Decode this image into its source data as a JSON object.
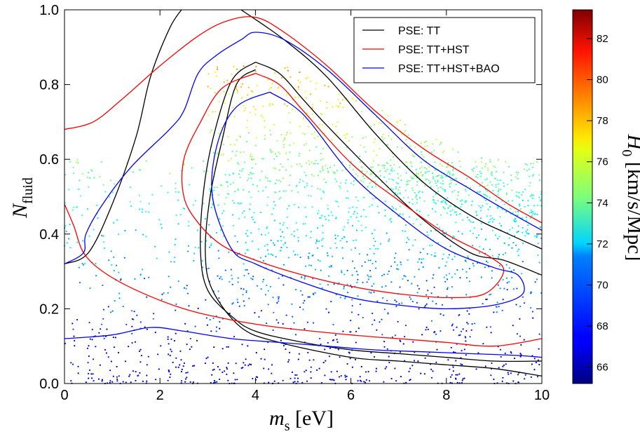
{
  "chart_data": {
    "type": "scatter",
    "xlabel": "m_s [eV]",
    "xlabel_main": "m",
    "xlabel_sub": "s",
    "xlabel_unit": " [eV]",
    "ylabel": "N_fluid",
    "ylabel_main": "N",
    "ylabel_sub": "fluid",
    "xlim": [
      0,
      10
    ],
    "ylim": [
      0,
      1
    ],
    "xticks": [
      "0",
      "2",
      "4",
      "6",
      "8",
      "10"
    ],
    "yticks": [
      "0.0",
      "0.2",
      "0.4",
      "0.6",
      "0.8",
      "1.0"
    ],
    "colorbar": {
      "label": "H_0 [km/s/Mpc]",
      "label_main": "H",
      "label_sub": "0",
      "label_unit": " [km/s/Mpc]",
      "range": [
        65.2,
        83.4
      ],
      "ticks": [
        "66",
        "68",
        "70",
        "72",
        "74",
        "76",
        "78",
        "80",
        "82"
      ],
      "colormap": "jet"
    },
    "legend_position": "top-right",
    "series": [
      {
        "name": "PSE: TT",
        "color": "#000000",
        "contours": [
          [
            [
              0,
              0.32
            ],
            [
              0.5,
              0.35
            ],
            [
              1.0,
              0.48
            ],
            [
              1.5,
              0.66
            ],
            [
              1.8,
              0.82
            ],
            [
              2.2,
              0.95
            ],
            [
              2.45,
              1.0
            ]
          ],
          [
            [
              3.7,
              1.0
            ],
            [
              4.6,
              0.92
            ],
            [
              5.5,
              0.82
            ],
            [
              6.5,
              0.67
            ],
            [
              7.5,
              0.54
            ],
            [
              8.5,
              0.45
            ],
            [
              9.3,
              0.4
            ],
            [
              10,
              0.36
            ]
          ],
          [
            [
              4.0,
              0.86
            ],
            [
              4.5,
              0.83
            ],
            [
              5.0,
              0.76
            ],
            [
              5.5,
              0.69
            ],
            [
              6.5,
              0.56
            ],
            [
              7.5,
              0.44
            ],
            [
              8.5,
              0.35
            ],
            [
              9.2,
              0.33
            ],
            [
              10,
              0.29
            ]
          ],
          [
            [
              4.0,
              0.86
            ],
            [
              3.5,
              0.81
            ],
            [
              3.1,
              0.65
            ],
            [
              2.9,
              0.5
            ],
            [
              2.85,
              0.35
            ],
            [
              3.0,
              0.25
            ],
            [
              3.5,
              0.18
            ],
            [
              4.0,
              0.14
            ],
            [
              5.0,
              0.11
            ],
            [
              6.0,
              0.09
            ],
            [
              7.0,
              0.08
            ],
            [
              8.0,
              0.07
            ],
            [
              9.0,
              0.06
            ],
            [
              10,
              0.06
            ]
          ],
          [
            [
              4.0,
              0.84
            ],
            [
              3.6,
              0.8
            ],
            [
              3.3,
              0.65
            ],
            [
              3.05,
              0.5
            ],
            [
              2.95,
              0.35
            ],
            [
              3.1,
              0.25
            ],
            [
              3.7,
              0.15
            ],
            [
              4.5,
              0.11
            ],
            [
              6.0,
              0.07
            ],
            [
              7.0,
              0.06
            ],
            [
              8.0,
              0.05
            ],
            [
              9.0,
              0.04
            ],
            [
              10,
              0.02
            ]
          ]
        ]
      },
      {
        "name": "PSE: TT+HST",
        "color": "#ff0000",
        "contours": [
          [
            [
              0,
              0.68
            ],
            [
              0.6,
              0.7
            ],
            [
              1.2,
              0.76
            ],
            [
              2.0,
              0.85
            ],
            [
              2.8,
              0.93
            ],
            [
              3.4,
              0.97
            ],
            [
              4.0,
              0.98
            ],
            [
              4.6,
              0.94
            ],
            [
              5.5,
              0.85
            ],
            [
              6.5,
              0.73
            ],
            [
              7.5,
              0.63
            ],
            [
              8.5,
              0.55
            ],
            [
              9.3,
              0.48
            ],
            [
              10,
              0.43
            ]
          ],
          [
            [
              0,
              0.48
            ],
            [
              0.2,
              0.42
            ],
            [
              0.4,
              0.35
            ],
            [
              0.8,
              0.3
            ],
            [
              1.5,
              0.25
            ],
            [
              2.5,
              0.2
            ],
            [
              3.5,
              0.17
            ],
            [
              4.5,
              0.15
            ],
            [
              6.0,
              0.13
            ],
            [
              7.0,
              0.12
            ],
            [
              8.0,
              0.11
            ],
            [
              9.0,
              0.1
            ],
            [
              10,
              0.12
            ]
          ],
          [
            [
              4.0,
              0.83
            ],
            [
              3.3,
              0.79
            ],
            [
              2.85,
              0.7
            ],
            [
              2.5,
              0.6
            ],
            [
              2.5,
              0.5
            ],
            [
              2.8,
              0.43
            ],
            [
              3.3,
              0.37
            ],
            [
              4.0,
              0.33
            ],
            [
              5.0,
              0.29
            ],
            [
              6.0,
              0.26
            ],
            [
              7.0,
              0.24
            ],
            [
              8.0,
              0.23
            ],
            [
              8.8,
              0.24
            ],
            [
              9.2,
              0.3
            ],
            [
              8.9,
              0.34
            ],
            [
              8.0,
              0.4
            ],
            [
              7.0,
              0.49
            ],
            [
              6.0,
              0.59
            ],
            [
              5.0,
              0.73
            ],
            [
              4.5,
              0.8
            ],
            [
              4.0,
              0.83
            ]
          ]
        ]
      },
      {
        "name": "PSE: TT+HST+BAO",
        "color": "#0000ff",
        "contours": [
          [
            [
              0,
              0.32
            ],
            [
              0.4,
              0.35
            ],
            [
              0.45,
              0.4
            ],
            [
              0.8,
              0.48
            ],
            [
              1.4,
              0.58
            ],
            [
              2.2,
              0.68
            ],
            [
              2.5,
              0.73
            ],
            [
              2.8,
              0.83
            ],
            [
              3.2,
              0.88
            ],
            [
              3.7,
              0.92
            ],
            [
              4.0,
              0.94
            ],
            [
              4.6,
              0.92
            ],
            [
              5.5,
              0.84
            ],
            [
              6.5,
              0.72
            ],
            [
              7.5,
              0.6
            ],
            [
              8.5,
              0.52
            ],
            [
              9.3,
              0.46
            ],
            [
              10,
              0.41
            ]
          ],
          [
            [
              0,
              0.12
            ],
            [
              1.0,
              0.13
            ],
            [
              1.8,
              0.15
            ],
            [
              2.5,
              0.14
            ],
            [
              3.5,
              0.12
            ],
            [
              4.5,
              0.11
            ],
            [
              5.5,
              0.1
            ],
            [
              6.5,
              0.09
            ],
            [
              7.5,
              0.085
            ],
            [
              8.5,
              0.08
            ],
            [
              9.5,
              0.075
            ],
            [
              10,
              0.07
            ]
          ],
          [
            [
              4.3,
              0.78
            ],
            [
              3.6,
              0.74
            ],
            [
              3.2,
              0.64
            ],
            [
              3.1,
              0.5
            ],
            [
              3.5,
              0.36
            ],
            [
              4.0,
              0.32
            ],
            [
              5.0,
              0.27
            ],
            [
              6.0,
              0.23
            ],
            [
              7.0,
              0.21
            ],
            [
              8.0,
              0.2
            ],
            [
              9.0,
              0.21
            ],
            [
              9.6,
              0.24
            ],
            [
              9.5,
              0.29
            ],
            [
              9.0,
              0.31
            ],
            [
              8.0,
              0.36
            ],
            [
              7.0,
              0.45
            ],
            [
              6.0,
              0.56
            ],
            [
              5.0,
              0.72
            ],
            [
              4.3,
              0.78
            ]
          ]
        ]
      }
    ]
  }
}
